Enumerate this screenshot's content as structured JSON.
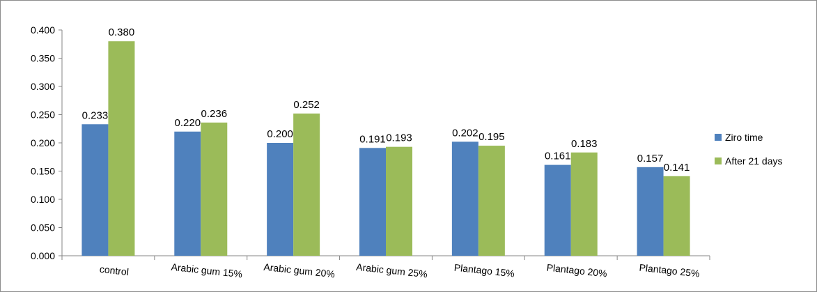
{
  "chart_data": {
    "type": "bar",
    "categories": [
      "control",
      "Arabic gum 15%",
      "Arabic gum 20%",
      "Arabic gum 25%",
      "Plantago 15%",
      "Plantago 20%",
      "Plantago 25%"
    ],
    "series": [
      {
        "name": "Ziro time",
        "color": "#4f81bd",
        "values": [
          0.233,
          0.22,
          0.2,
          0.191,
          0.202,
          0.161,
          0.157
        ]
      },
      {
        "name": "After 21 days",
        "color": "#9bbb59",
        "values": [
          0.38,
          0.236,
          0.252,
          0.193,
          0.195,
          0.183,
          0.141
        ]
      }
    ],
    "data_labels": [
      [
        "0.233",
        "0.220",
        "0.200",
        "0.191",
        "0.202",
        "0.161",
        "0.157"
      ],
      [
        "0.380",
        "0.236",
        "0.252",
        "0.193",
        "0.195",
        "0.183",
        "0.141"
      ]
    ],
    "yticks": [
      "0.000",
      "0.050",
      "0.100",
      "0.150",
      "0.200",
      "0.250",
      "0.300",
      "0.350",
      "0.400"
    ],
    "ylim": [
      0,
      0.4
    ],
    "grid": false,
    "legend_position": "right",
    "title": "",
    "xlabel": "",
    "ylabel": ""
  }
}
